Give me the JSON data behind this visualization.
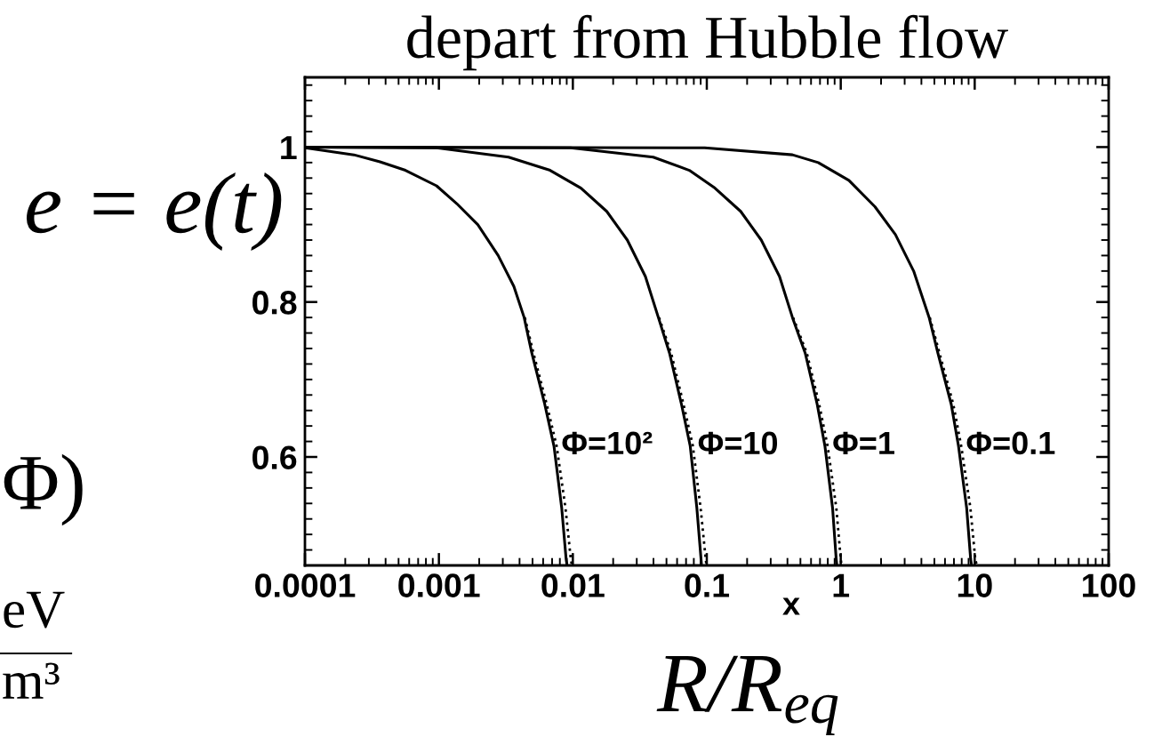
{
  "chart_data": {
    "type": "line",
    "title": "depart from Hubble flow",
    "xlabel": "x",
    "log": "x",
    "xlim": [
      0.0001,
      100
    ],
    "xticks": [
      0.0001,
      {
        "value": 0.0002,
        "label": null
      },
      {
        "value": 0.0003,
        "label": null
      },
      {
        "value": 0.0004,
        "label": null
      },
      {
        "value": 0.0005,
        "label": null
      },
      {
        "value": 0.0006,
        "label": null
      },
      {
        "value": 0.0007,
        "label": null
      },
      {
        "value": 0.0008,
        "label": null
      },
      {
        "value": 0.0009,
        "label": null
      },
      0.001,
      {
        "value": 0.002,
        "label": null
      },
      {
        "value": 0.003,
        "label": null
      },
      {
        "value": 0.004,
        "label": null
      },
      {
        "value": 0.005,
        "label": null
      },
      {
        "value": 0.006,
        "label": null
      },
      {
        "value": 0.007,
        "label": null
      },
      {
        "value": 0.008,
        "label": null
      },
      {
        "value": 0.009,
        "label": null
      },
      0.01,
      {
        "value": 0.02,
        "label": null
      },
      {
        "value": 0.03,
        "label": null
      },
      {
        "value": 0.04,
        "label": null
      },
      {
        "value": 0.05,
        "label": null
      },
      {
        "value": 0.06,
        "label": null
      },
      {
        "value": 0.07,
        "label": null
      },
      {
        "value": 0.08,
        "label": null
      },
      {
        "value": 0.09,
        "label": null
      },
      0.1,
      {
        "value": 0.2,
        "label": null
      },
      {
        "value": 0.3,
        "label": null
      },
      {
        "value": 0.4,
        "label": null
      },
      {
        "value": 0.5,
        "label": null
      },
      {
        "value": 0.6,
        "label": null
      },
      {
        "value": 0.7,
        "label": null
      },
      {
        "value": 0.8,
        "label": null
      },
      {
        "value": 0.9,
        "label": null
      },
      1,
      {
        "value": 2,
        "label": null
      },
      {
        "value": 3,
        "label": null
      },
      {
        "value": 4,
        "label": null
      },
      {
        "value": 5,
        "label": null
      },
      {
        "value": 6,
        "label": null
      },
      {
        "value": 7,
        "label": null
      },
      {
        "value": 8,
        "label": null
      },
      {
        "value": 9,
        "label": null
      },
      10,
      {
        "value": 20,
        "label": null
      },
      {
        "value": 30,
        "label": null
      },
      {
        "value": 40,
        "label": null
      },
      {
        "value": 50,
        "label": null
      },
      {
        "value": 60,
        "label": null
      },
      {
        "value": 70,
        "label": null
      },
      {
        "value": 80,
        "label": null
      },
      {
        "value": 90,
        "label": null
      },
      100
    ],
    "ylim": [
      0.46,
      1.09
    ],
    "yticks": [
      {
        "value": 0.48,
        "label": null
      },
      {
        "value": 0.5,
        "label": null
      },
      {
        "value": 0.52,
        "label": null
      },
      {
        "value": 0.54,
        "label": null
      },
      {
        "value": 0.56,
        "label": null
      },
      {
        "value": 0.58,
        "label": null
      },
      0.6,
      {
        "value": 0.62,
        "label": null
      },
      {
        "value": 0.64,
        "label": null
      },
      {
        "value": 0.66,
        "label": null
      },
      {
        "value": 0.68,
        "label": null
      },
      {
        "value": 0.7,
        "label": null
      },
      {
        "value": 0.72,
        "label": null
      },
      {
        "value": 0.74,
        "label": null
      },
      {
        "value": 0.76,
        "label": null
      },
      {
        "value": 0.78,
        "label": null
      },
      0.8,
      {
        "value": 0.82,
        "label": null
      },
      {
        "value": 0.84,
        "label": null
      },
      {
        "value": 0.86,
        "label": null
      },
      {
        "value": 0.88,
        "label": null
      },
      {
        "value": 0.9,
        "label": null
      },
      {
        "value": 0.92,
        "label": null
      },
      {
        "value": 0.94,
        "label": null
      },
      {
        "value": 0.96,
        "label": null
      },
      {
        "value": 0.98,
        "label": null
      },
      1,
      {
        "value": 1.02,
        "label": null
      },
      {
        "value": 1.04,
        "label": null
      },
      {
        "value": 1.06,
        "label": null
      },
      {
        "value": 1.08,
        "label": null
      }
    ],
    "series": [
      {
        "name": "Φ=10²",
        "color": "#000000",
        "line_style": "solid",
        "x": [
          0.0001,
          0.000232,
          0.000363,
          0.000562,
          0.00096,
          0.00136,
          0.00195,
          0.00277,
          0.00363,
          0.00433,
          0.00494,
          0.00617,
          0.00723,
          0.00826,
          0.00891,
          0.00902
        ],
        "values": [
          0.999,
          0.99,
          0.981,
          0.97,
          0.95,
          0.927,
          0.9,
          0.86,
          0.82,
          0.78,
          0.734,
          0.668,
          0.614,
          0.534,
          0.468,
          0.462
        ]
      },
      {
        "color": "#000000",
        "line_style": "dotted",
        "x": [
          0.00438,
          0.00508,
          0.00638,
          0.00757,
          0.00881,
          0.00966,
          0.0098
        ],
        "values": [
          0.78,
          0.734,
          0.668,
          0.614,
          0.534,
          0.468,
          0.462
        ]
      },
      {
        "name": "Φ=10",
        "color": "#000000",
        "line_style": "solid",
        "x": [
          0.0001,
          0.00096,
          0.00331,
          0.00676,
          0.0115,
          0.0179,
          0.0255,
          0.0348,
          0.0435,
          0.0527,
          0.0647,
          0.0752,
          0.0843,
          0.0906,
          0.0912
        ],
        "values": [
          1.0,
          0.999,
          0.987,
          0.97,
          0.947,
          0.917,
          0.88,
          0.833,
          0.78,
          0.734,
          0.668,
          0.614,
          0.534,
          0.468,
          0.462
        ]
      },
      {
        "color": "#000000",
        "line_style": "dotted",
        "x": [
          0.044,
          0.0542,
          0.067,
          0.0787,
          0.0899,
          0.0982,
          0.0991
        ],
        "values": [
          0.78,
          0.734,
          0.668,
          0.614,
          0.534,
          0.468,
          0.462
        ]
      },
      {
        "name": "Φ=1",
        "color": "#000000",
        "line_style": "solid",
        "x": [
          0.0001,
          0.00962,
          0.0398,
          0.074,
          0.115,
          0.179,
          0.255,
          0.349,
          0.436,
          0.543,
          0.667,
          0.762,
          0.869,
          0.925,
          0.933
        ],
        "values": [
          1.0,
          0.999,
          0.987,
          0.97,
          0.947,
          0.917,
          0.88,
          0.833,
          0.78,
          0.734,
          0.668,
          0.614,
          0.534,
          0.468,
          0.462
        ]
      },
      {
        "color": "#000000",
        "line_style": "dotted",
        "x": [
          0.441,
          0.558,
          0.69,
          0.798,
          0.927,
          1.0,
          1.01
        ],
        "values": [
          0.78,
          0.734,
          0.668,
          0.614,
          0.534,
          0.468,
          0.462
        ]
      },
      {
        "name": "Φ=0.1",
        "color": "#000000",
        "line_style": "solid",
        "x": [
          0.0001,
          0.0964,
          0.436,
          0.679,
          1.15,
          1.8,
          2.56,
          3.5,
          4.57,
          5.31,
          6.68,
          7.57,
          8.71,
          9.33,
          9.44
        ],
        "values": [
          1.0,
          0.999,
          0.99,
          0.98,
          0.957,
          0.923,
          0.887,
          0.84,
          0.78,
          0.734,
          0.668,
          0.614,
          0.534,
          0.468,
          0.462
        ]
      },
      {
        "color": "#000000",
        "line_style": "dotted",
        "x": [
          4.62,
          5.46,
          6.92,
          7.93,
          9.29,
          10.1,
          10.3
        ],
        "values": [
          0.78,
          0.734,
          0.668,
          0.614,
          0.534,
          0.468,
          0.462
        ]
      }
    ],
    "annotations": [
      "e = e(t)",
      "Φ)",
      "eV",
      "m³",
      "R/R$_{eq}$"
    ]
  }
}
